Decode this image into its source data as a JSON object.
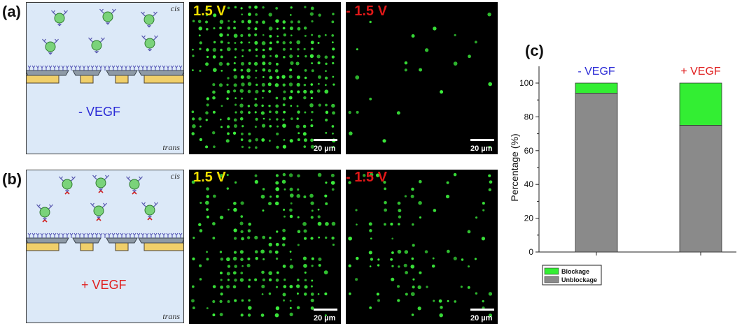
{
  "panels": {
    "a": {
      "label": "(a)",
      "cis": "cis",
      "trans": "trans",
      "condition": "- VEGF",
      "condition_color": "#2b2bd6",
      "left_voltage": "1.5 V",
      "right_voltage": "- 1.5 V",
      "scale_left": "20 µm",
      "scale_right": "20 µm"
    },
    "b": {
      "label": "(b)",
      "cis": "cis",
      "trans": "trans",
      "condition": "+ VEGF",
      "condition_color": "#e02020",
      "left_voltage": "1.5 V",
      "right_voltage": "- 1.5 V",
      "scale_left": "20 µm",
      "scale_right": "20 µm"
    },
    "c": {
      "label": "(c)"
    }
  },
  "colors": {
    "positive_voltage": "#f2e000",
    "negative_voltage": "#e01818",
    "blockage": "#33ee33",
    "unblockage": "#8a8a8a",
    "membrane_gold": "#f0cf6a",
    "membrane_gray": "#8e9aa6",
    "molecule_green": "#7ad37a"
  },
  "chart_data": {
    "type": "bar",
    "stacked": true,
    "categories": [
      "- VEGF",
      "+ VEGF"
    ],
    "category_label_colors": [
      "#2b2bd6",
      "#e02020"
    ],
    "series": [
      {
        "name": "Unblockage",
        "values": [
          94,
          75
        ],
        "color": "#8a8a8a"
      },
      {
        "name": "Blockage",
        "values": [
          6,
          25
        ],
        "color": "#33ee33"
      }
    ],
    "ylabel": "Percentage (%)",
    "ylim": [
      0,
      100
    ],
    "yticks": [
      0,
      20,
      40,
      60,
      80,
      100
    ],
    "legend_position": "bottom-left"
  }
}
